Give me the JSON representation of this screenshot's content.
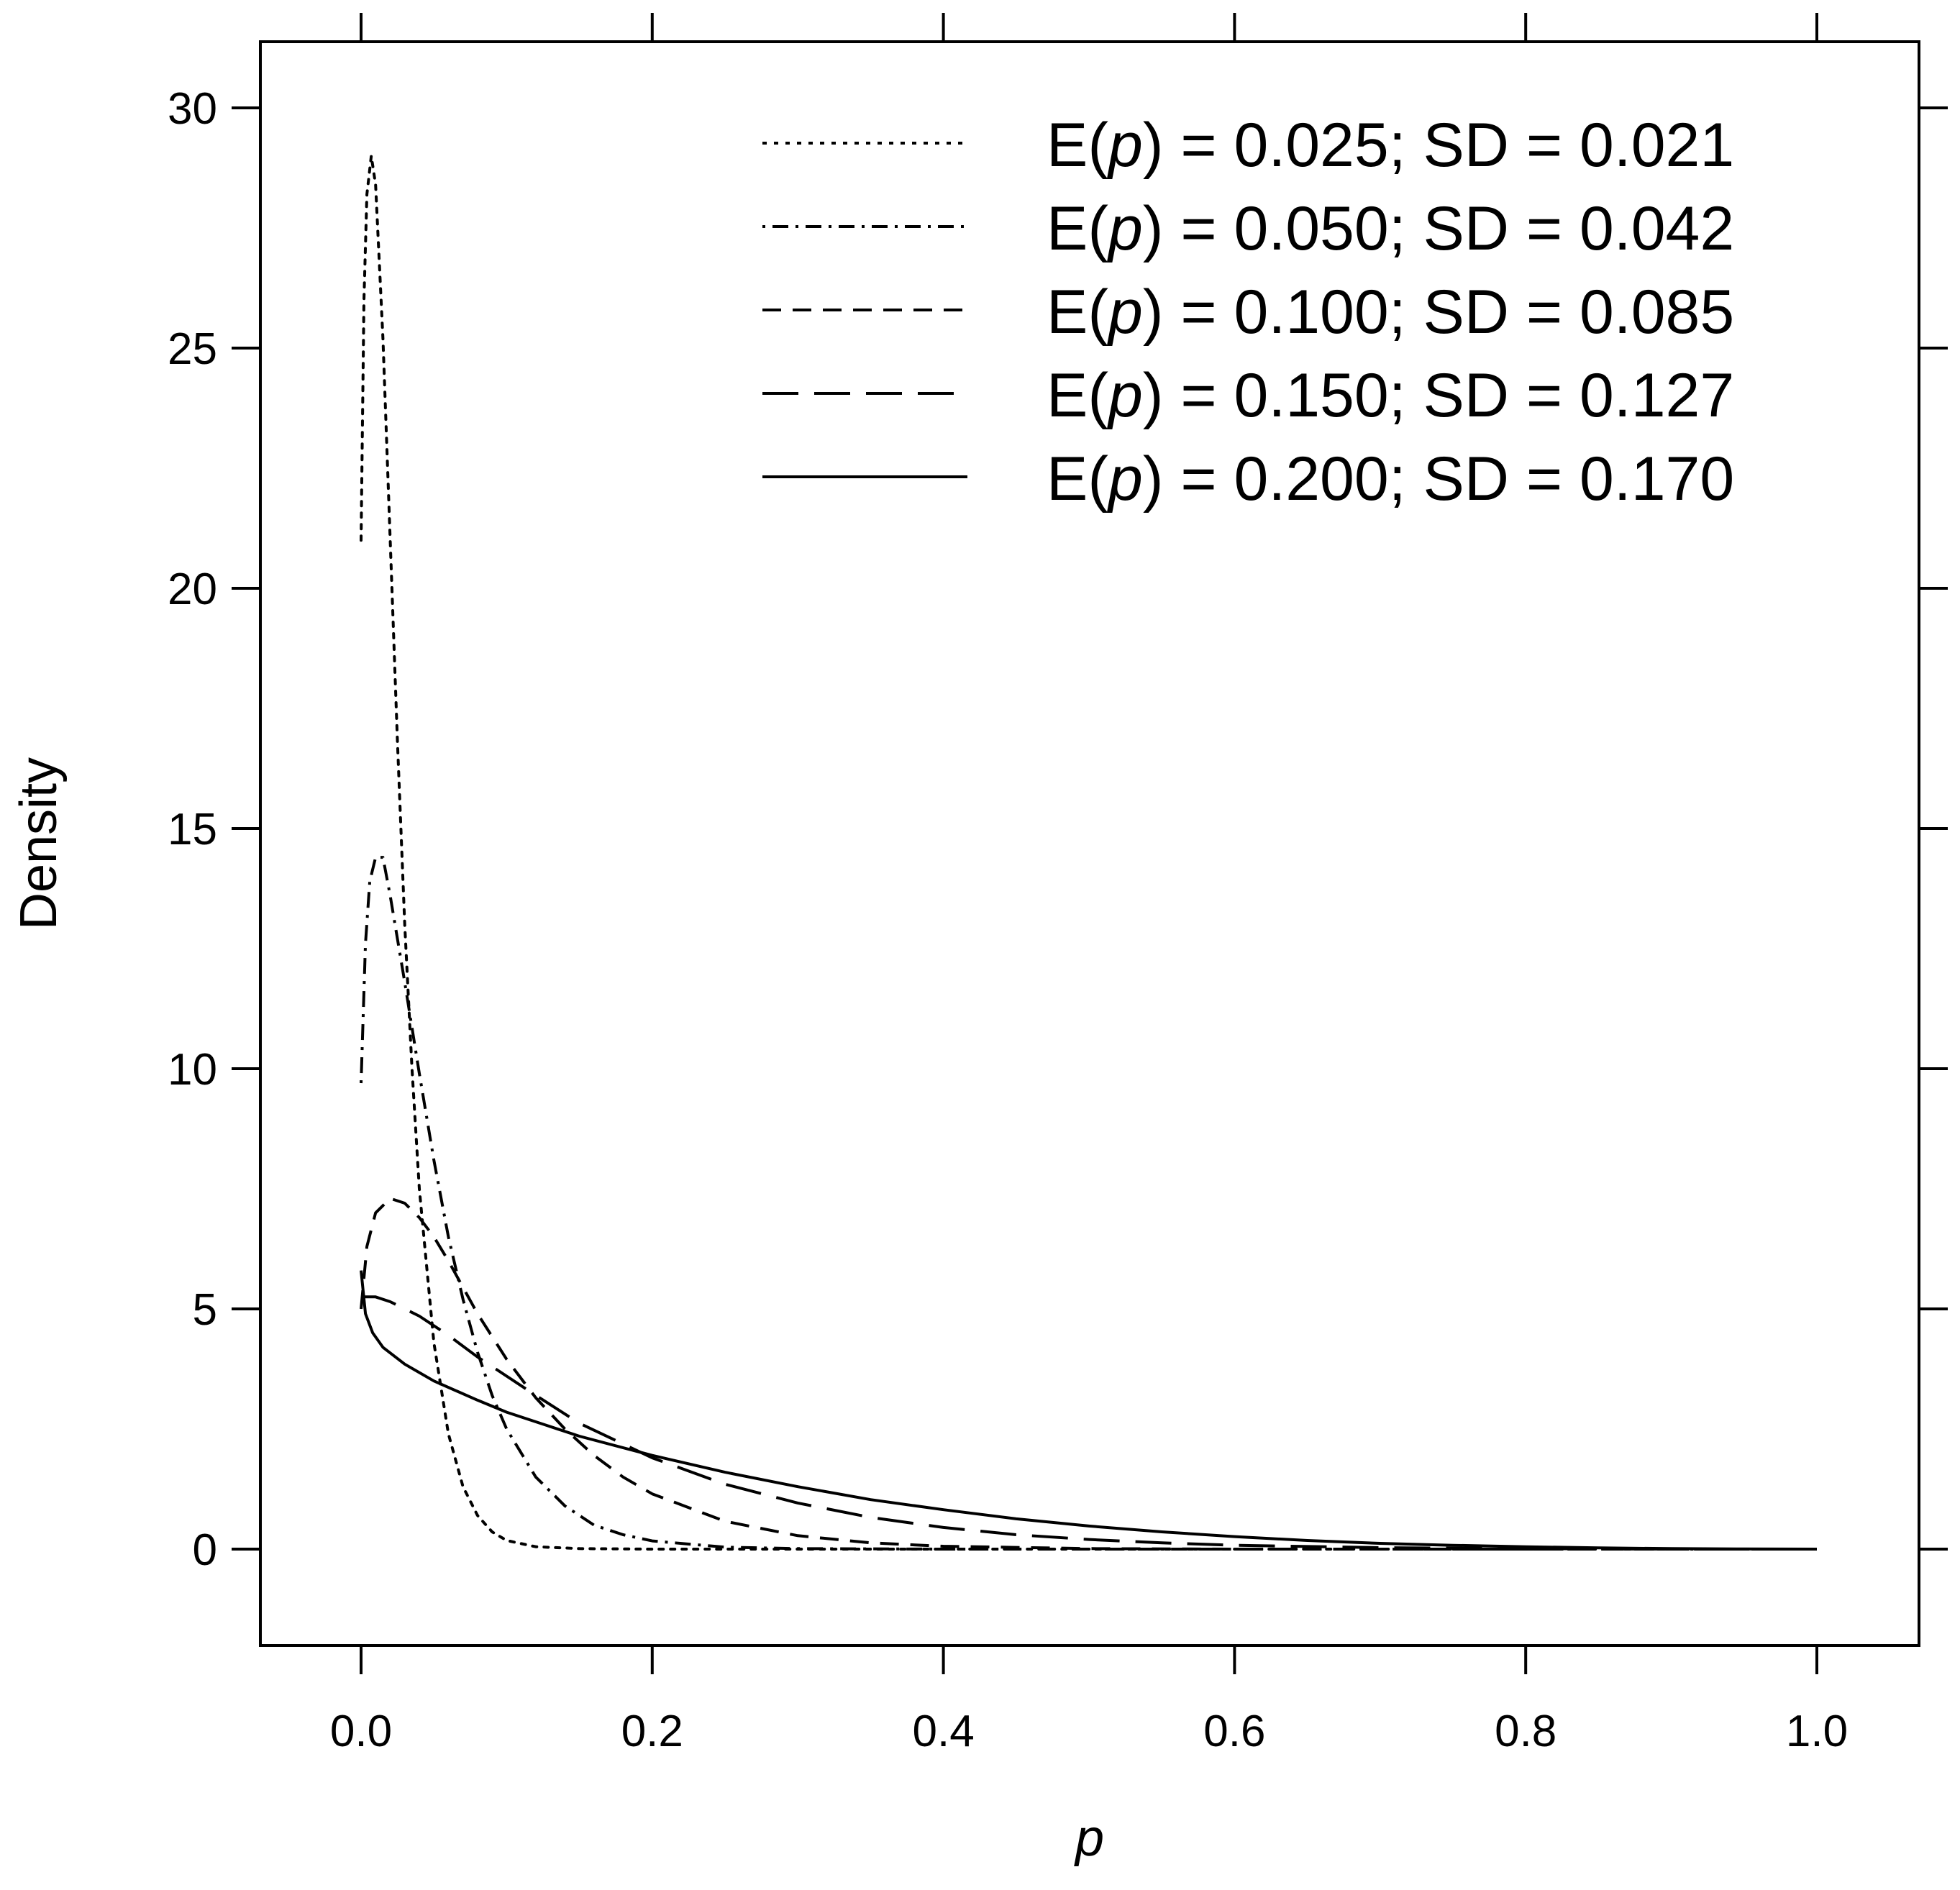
{
  "chart_data": {
    "type": "line",
    "title": "",
    "xlabel": "p",
    "ylabel": "Density",
    "xlim": [
      -0.07,
      1.07
    ],
    "ylim": [
      -2,
      32
    ],
    "grid": false,
    "legend_position": "top-right",
    "x_ticks": [
      {
        "value": 0.0,
        "label": "0.0"
      },
      {
        "value": 0.2,
        "label": "0.2"
      },
      {
        "value": 0.4,
        "label": "0.4"
      },
      {
        "value": 0.6,
        "label": "0.6"
      },
      {
        "value": 0.8,
        "label": "0.8"
      },
      {
        "value": 1.0,
        "label": "1.0"
      }
    ],
    "y_ticks": [
      {
        "value": 0,
        "label": "0"
      },
      {
        "value": 5,
        "label": "5"
      },
      {
        "value": 10,
        "label": "10"
      },
      {
        "value": 15,
        "label": "15"
      },
      {
        "value": 20,
        "label": "20"
      },
      {
        "value": 25,
        "label": "25"
      },
      {
        "value": 30,
        "label": "30"
      }
    ],
    "series": [
      {
        "name": "E(p) = 0.025; SD = 0.021",
        "legend_prefix": "E(",
        "legend_var": "p",
        "legend_suffix": ") = 0.025; SD = 0.021",
        "line_style": "dotted",
        "points": [
          [
            0.0,
            21.0
          ],
          [
            0.002,
            26.0
          ],
          [
            0.004,
            28.2
          ],
          [
            0.007,
            29.0
          ],
          [
            0.01,
            28.4
          ],
          [
            0.015,
            25.2
          ],
          [
            0.02,
            21.0
          ],
          [
            0.025,
            16.8
          ],
          [
            0.03,
            13.0
          ],
          [
            0.035,
            10.0
          ],
          [
            0.04,
            7.5
          ],
          [
            0.05,
            4.3
          ],
          [
            0.06,
            2.4
          ],
          [
            0.07,
            1.3
          ],
          [
            0.08,
            0.7
          ],
          [
            0.09,
            0.36
          ],
          [
            0.1,
            0.18
          ],
          [
            0.12,
            0.05
          ],
          [
            0.15,
            0.01
          ],
          [
            0.2,
            0.0
          ],
          [
            0.3,
            0.0
          ],
          [
            0.4,
            0.0
          ],
          [
            0.6,
            0.0
          ],
          [
            0.8,
            0.0
          ],
          [
            1.0,
            0.0
          ]
        ]
      },
      {
        "name": "E(p) = 0.050; SD = 0.042",
        "legend_prefix": "E(",
        "legend_var": "p",
        "legend_suffix": ") = 0.050; SD = 0.042",
        "line_style": "dot-dash",
        "points": [
          [
            0.0,
            9.7
          ],
          [
            0.003,
            12.6
          ],
          [
            0.006,
            13.9
          ],
          [
            0.01,
            14.4
          ],
          [
            0.015,
            14.4
          ],
          [
            0.02,
            13.6
          ],
          [
            0.03,
            11.8
          ],
          [
            0.04,
            9.9
          ],
          [
            0.05,
            8.1
          ],
          [
            0.06,
            6.5
          ],
          [
            0.07,
            5.2
          ],
          [
            0.08,
            4.1
          ],
          [
            0.09,
            3.2
          ],
          [
            0.1,
            2.5
          ],
          [
            0.12,
            1.5
          ],
          [
            0.14,
            0.9
          ],
          [
            0.16,
            0.5
          ],
          [
            0.18,
            0.3
          ],
          [
            0.2,
            0.17
          ],
          [
            0.25,
            0.04
          ],
          [
            0.3,
            0.01
          ],
          [
            0.4,
            0.0
          ],
          [
            0.6,
            0.0
          ],
          [
            0.8,
            0.0
          ],
          [
            1.0,
            0.0
          ]
        ]
      },
      {
        "name": "E(p) = 0.100; SD = 0.085",
        "legend_prefix": "E(",
        "legend_var": "p",
        "legend_suffix": ") = 0.100; SD = 0.085",
        "line_style": "short-dash",
        "points": [
          [
            0.0,
            5.0
          ],
          [
            0.004,
            6.3
          ],
          [
            0.01,
            7.0
          ],
          [
            0.02,
            7.3
          ],
          [
            0.03,
            7.2
          ],
          [
            0.04,
            6.9
          ],
          [
            0.05,
            6.5
          ],
          [
            0.06,
            6.0
          ],
          [
            0.08,
            4.9
          ],
          [
            0.1,
            3.95
          ],
          [
            0.12,
            3.15
          ],
          [
            0.14,
            2.5
          ],
          [
            0.16,
            1.95
          ],
          [
            0.18,
            1.5
          ],
          [
            0.2,
            1.15
          ],
          [
            0.25,
            0.58
          ],
          [
            0.3,
            0.28
          ],
          [
            0.35,
            0.13
          ],
          [
            0.4,
            0.06
          ],
          [
            0.5,
            0.01
          ],
          [
            0.6,
            0.0
          ],
          [
            0.8,
            0.0
          ],
          [
            1.0,
            0.0
          ]
        ]
      },
      {
        "name": "E(p) = 0.150; SD = 0.127",
        "legend_prefix": "E(",
        "legend_var": "p",
        "legend_suffix": ") = 0.150; SD = 0.127",
        "line_style": "long-dash",
        "points": [
          [
            0.0,
            5.25
          ],
          [
            0.01,
            5.25
          ],
          [
            0.02,
            5.15
          ],
          [
            0.04,
            4.85
          ],
          [
            0.06,
            4.45
          ],
          [
            0.08,
            4.0
          ],
          [
            0.1,
            3.6
          ],
          [
            0.12,
            3.2
          ],
          [
            0.15,
            2.62
          ],
          [
            0.2,
            1.9
          ],
          [
            0.25,
            1.35
          ],
          [
            0.3,
            0.96
          ],
          [
            0.35,
            0.66
          ],
          [
            0.4,
            0.45
          ],
          [
            0.45,
            0.3
          ],
          [
            0.5,
            0.2
          ],
          [
            0.55,
            0.13
          ],
          [
            0.6,
            0.08
          ],
          [
            0.7,
            0.03
          ],
          [
            0.8,
            0.01
          ],
          [
            0.9,
            0.0
          ],
          [
            1.0,
            0.0
          ]
        ]
      },
      {
        "name": "E(p) = 0.200; SD = 0.170",
        "legend_prefix": "E(",
        "legend_var": "p",
        "legend_suffix": ") = 0.200; SD = 0.170",
        "line_style": "solid",
        "points": [
          [
            0.0,
            5.8
          ],
          [
            0.003,
            4.9
          ],
          [
            0.008,
            4.5
          ],
          [
            0.015,
            4.2
          ],
          [
            0.03,
            3.85
          ],
          [
            0.05,
            3.5
          ],
          [
            0.08,
            3.1
          ],
          [
            0.1,
            2.85
          ],
          [
            0.15,
            2.35
          ],
          [
            0.2,
            1.95
          ],
          [
            0.25,
            1.6
          ],
          [
            0.3,
            1.3
          ],
          [
            0.35,
            1.03
          ],
          [
            0.4,
            0.82
          ],
          [
            0.45,
            0.63
          ],
          [
            0.5,
            0.48
          ],
          [
            0.55,
            0.36
          ],
          [
            0.6,
            0.26
          ],
          [
            0.65,
            0.18
          ],
          [
            0.7,
            0.12
          ],
          [
            0.75,
            0.08
          ],
          [
            0.8,
            0.05
          ],
          [
            0.85,
            0.025
          ],
          [
            0.9,
            0.01
          ],
          [
            0.95,
            0.003
          ],
          [
            1.0,
            0.0
          ]
        ]
      }
    ]
  }
}
